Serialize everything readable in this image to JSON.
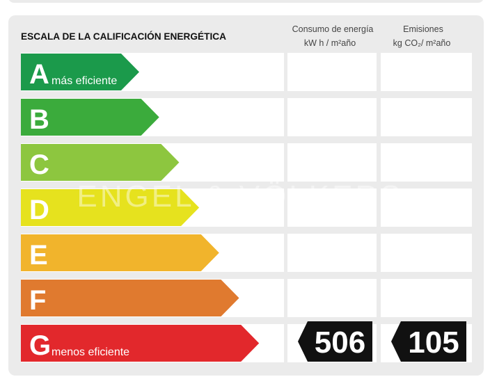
{
  "title": "ESCALA DE LA CALIFICACIÓN ENERGÉTICA",
  "columns": [
    {
      "label": "Consumo de energía",
      "unit": "kW h / m²año"
    },
    {
      "label": "Emisiones",
      "unit": "kg CO₂/ m²año"
    }
  ],
  "watermark": "ENGEL & VÖLKERS",
  "rows": [
    {
      "letter": "A",
      "note": "más eficiente",
      "color": "#1b9a4b"
    },
    {
      "letter": "B",
      "color": "#3bab3c"
    },
    {
      "letter": "C",
      "color": "#8dc63f"
    },
    {
      "letter": "D",
      "color": "#e6e21e"
    },
    {
      "letter": "E",
      "color": "#f1b42c"
    },
    {
      "letter": "F",
      "color": "#e07a2f"
    },
    {
      "letter": "G",
      "note": "menos eficiente",
      "color": "#e2282c",
      "consumption": 506,
      "emissions": 105
    }
  ]
}
